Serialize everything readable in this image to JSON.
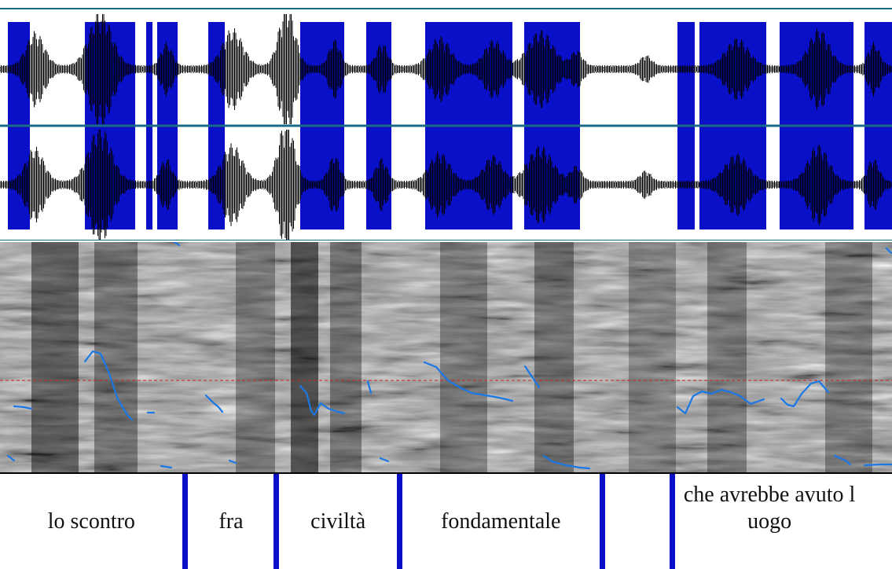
{
  "colors": {
    "voiced_region": "#0a0fc8",
    "waveform": "#000000",
    "channel_separator": "#1b6b86",
    "pitch_contour": "#1a78e6",
    "reference_line": "#cc2222",
    "boundary": "#0a0fc8"
  },
  "tier": {
    "intervals": [
      {
        "label": "lo scontro",
        "start": 0.0,
        "end": 0.205
      },
      {
        "label": "fra",
        "start": 0.211,
        "end": 0.307
      },
      {
        "label": "civiltà",
        "start": 0.313,
        "end": 0.445
      },
      {
        "label": "fondamentale",
        "start": 0.451,
        "end": 0.672
      },
      {
        "label": "",
        "start": 0.678,
        "end": 0.751
      },
      {
        "label": "che avrebbe avuto l uogo",
        "start": 0.757,
        "end": 1.0
      }
    ]
  }
}
